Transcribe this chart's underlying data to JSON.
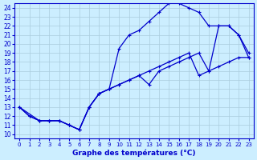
{
  "title": "Graphe des températures (°C)",
  "bg_color": "#cceeff",
  "grid_color": "#aaccdd",
  "line_color": "#0000cc",
  "xlim": [
    -0.5,
    23.5
  ],
  "ylim": [
    9.5,
    24.5
  ],
  "xticks": [
    0,
    1,
    2,
    3,
    4,
    5,
    6,
    7,
    8,
    9,
    10,
    11,
    12,
    13,
    14,
    15,
    16,
    17,
    18,
    19,
    20,
    21,
    22,
    23
  ],
  "yticks": [
    10,
    11,
    12,
    13,
    14,
    15,
    16,
    17,
    18,
    19,
    20,
    21,
    22,
    23,
    24
  ],
  "curve1_x": [
    0,
    1,
    2,
    3,
    4,
    5,
    6,
    7,
    8,
    9,
    10,
    11,
    12,
    13,
    14,
    15,
    16,
    17,
    18,
    19,
    20,
    21,
    22,
    23
  ],
  "curve1_y": [
    13,
    12,
    11.5,
    11.5,
    11.5,
    11,
    10.5,
    13,
    14.5,
    15,
    15.5,
    16,
    16.5,
    17,
    17.5,
    18,
    18.5,
    19,
    16.5,
    17,
    17.5,
    18,
    18.5,
    18.5
  ],
  "curve2_x": [
    0,
    1,
    2,
    3,
    4,
    5,
    6,
    7,
    8,
    9,
    10,
    11,
    12,
    13,
    14,
    15,
    16,
    17,
    18,
    19,
    20,
    21,
    22,
    23
  ],
  "curve2_y": [
    13,
    12,
    11.5,
    11.5,
    11.5,
    11,
    10.5,
    13,
    14.5,
    15,
    19.5,
    21,
    21.5,
    22.5,
    23.5,
    24.5,
    24.5,
    24,
    23.5,
    22,
    22,
    22,
    21,
    18.5
  ],
  "curve3_x": [
    0,
    2,
    3,
    4,
    5,
    6,
    7,
    8,
    9,
    10,
    11,
    12,
    13,
    14,
    15,
    16,
    17,
    18,
    19,
    20,
    21,
    22,
    23
  ],
  "curve3_y": [
    13,
    11.5,
    11.5,
    11.5,
    11,
    10.5,
    13,
    14.5,
    15,
    15.5,
    16,
    16.5,
    15.5,
    17,
    17.5,
    18,
    18.5,
    19,
    17,
    22,
    22,
    21,
    19
  ]
}
